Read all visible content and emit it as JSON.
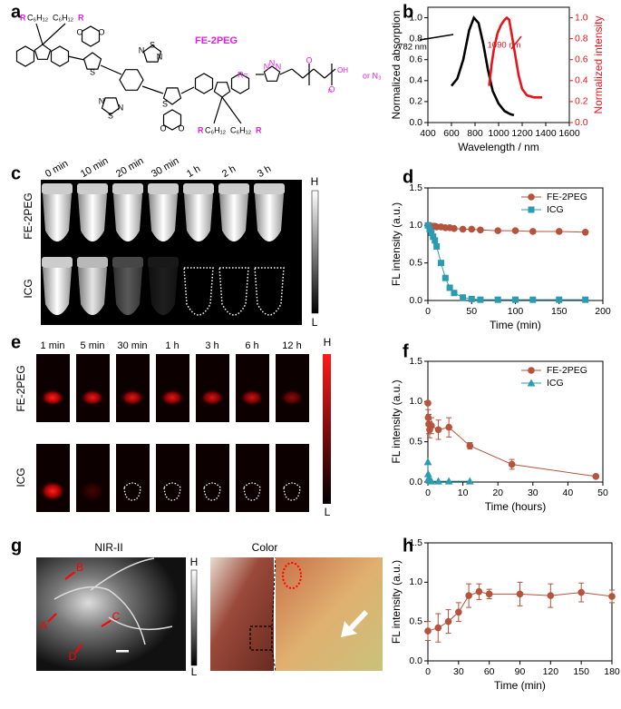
{
  "panel_labels": [
    "a",
    "b",
    "c",
    "d",
    "e",
    "f",
    "g",
    "h"
  ],
  "panel_a": {
    "title": "FE-2PEG",
    "substituent_top": [
      "R",
      "C₆H₁₂",
      "C₆H₁₂",
      "R"
    ],
    "substituent_bottom": [
      "R",
      "C₆H₁₂",
      "C₆H₁₂",
      "R"
    ],
    "atoms": [
      "O",
      "O",
      "S",
      "N",
      "S",
      "N",
      "N",
      "S",
      "N",
      "S",
      "O",
      "O"
    ],
    "r_group": {
      "label": "R=",
      "atoms": [
        "N",
        "N",
        "N",
        "O",
        "O"
      ],
      "repeat": "n",
      "end": "OH",
      "alternative": "or N₃"
    }
  },
  "panel_c": {
    "columns": [
      "0 min",
      "10 min",
      "20 min",
      "30 min",
      "1 h",
      "2 h",
      "3 h"
    ],
    "rows": [
      "FE-2PEG",
      "ICG"
    ],
    "scale": [
      "H",
      "L"
    ]
  },
  "panel_e": {
    "columns": [
      "1 min",
      "5 min",
      "30 min",
      "1 h",
      "3 h",
      "6 h",
      "12 h"
    ],
    "rows": [
      "FE-2PEG",
      "ICG"
    ],
    "scale": [
      "H",
      "L"
    ]
  },
  "panel_g": {
    "titles": [
      "NIR-II",
      "Color"
    ],
    "markers": [
      "A",
      "B",
      "C",
      "D"
    ],
    "scale": [
      "H",
      "L"
    ]
  },
  "chart_data": [
    {
      "type": "line",
      "xlabel": "Wavelength / nm",
      "ylabel": "Normalized absorption",
      "y2label": "Normalized intensity",
      "xlim": [
        400,
        1600
      ],
      "xticks": [
        400,
        600,
        800,
        1000,
        1200,
        1400,
        1600
      ],
      "ylim": [
        0,
        1.1
      ],
      "yticks": [
        {
          "value": 0,
          "label": "0.0"
        },
        {
          "value": 0.2,
          "label": "0.2"
        },
        {
          "value": 0.4,
          "label": "0.4"
        },
        {
          "value": 0.6,
          "label": "0.6"
        },
        {
          "value": 0.8,
          "label": "0.8"
        },
        {
          "value": 1,
          "label": "1.0"
        }
      ],
      "y2lim": [
        0,
        1.1
      ],
      "y2ticks": [
        {
          "value": 0,
          "label": "0.0"
        },
        {
          "value": 0.2,
          "label": "0.2"
        },
        {
          "value": 0.4,
          "label": "0.4"
        },
        {
          "value": 0.6,
          "label": "0.6"
        },
        {
          "value": 0.8,
          "label": "0.8"
        },
        {
          "value": 1,
          "label": "1.0"
        }
      ],
      "annotations": [
        "782 nm",
        "1090 nm"
      ],
      "series": [
        {
          "color": "#000000",
          "x": [
            600,
            650,
            700,
            750,
            790,
            830,
            870,
            910,
            950,
            1000,
            1050,
            1100,
            1130
          ],
          "values": [
            0.35,
            0.42,
            0.6,
            0.88,
            1.0,
            0.95,
            0.75,
            0.5,
            0.3,
            0.18,
            0.11,
            0.08,
            0.07
          ]
        },
        {
          "color": "#e8141b",
          "axis": "y2",
          "x": [
            920,
            940,
            960,
            990,
            1020,
            1050,
            1070,
            1090,
            1110,
            1140,
            1170,
            1200,
            1240,
            1300,
            1370
          ],
          "values": [
            0.35,
            0.55,
            0.7,
            0.85,
            0.93,
            0.98,
            1.0,
            0.98,
            0.85,
            0.65,
            0.45,
            0.32,
            0.26,
            0.24,
            0.24
          ]
        }
      ]
    },
    {
      "type": "line",
      "xlabel": "Time (min)",
      "ylabel": "FL intensity (a.u.)",
      "xlim": [
        0,
        200
      ],
      "xticks": [
        0,
        50,
        100,
        150,
        200
      ],
      "ylim": [
        0,
        1.5
      ],
      "yticks": [
        {
          "value": 0,
          "label": "0.0"
        },
        {
          "value": 0.5,
          "label": "0.5"
        },
        {
          "value": 1,
          "label": "1.0"
        },
        {
          "value": 1.5,
          "label": "1.5"
        }
      ],
      "legend": "upper right",
      "series": [
        {
          "name": "FE-2PEG",
          "color": "#b5533c",
          "marker": "circle",
          "x": [
            0,
            2,
            4,
            6,
            8,
            10,
            15,
            20,
            25,
            30,
            40,
            50,
            60,
            80,
            100,
            120,
            150,
            180
          ],
          "values": [
            1.0,
            1.0,
            0.99,
            0.99,
            0.99,
            0.98,
            0.98,
            0.97,
            0.97,
            0.96,
            0.95,
            0.95,
            0.94,
            0.93,
            0.93,
            0.92,
            0.92,
            0.91
          ]
        },
        {
          "name": "ICG",
          "color": "#2a9bb0",
          "marker": "square",
          "x": [
            0,
            2,
            4,
            6,
            8,
            10,
            15,
            20,
            25,
            30,
            40,
            50,
            60,
            80,
            100,
            120,
            150,
            180
          ],
          "values": [
            1.0,
            0.95,
            0.9,
            0.85,
            0.8,
            0.72,
            0.5,
            0.3,
            0.17,
            0.1,
            0.04,
            0.02,
            0.01,
            0.01,
            0.01,
            0.01,
            0.01,
            0.01
          ]
        }
      ]
    },
    {
      "type": "line",
      "xlabel": "Time (hours)",
      "ylabel": "FL intensity (a.u.)",
      "xlim": [
        0,
        50
      ],
      "xticks": [
        0,
        10,
        20,
        30,
        40,
        50
      ],
      "ylim": [
        0,
        1.5
      ],
      "yticks": [
        {
          "value": 0,
          "label": "0.0"
        },
        {
          "value": 0.5,
          "label": "0.5"
        },
        {
          "value": 1,
          "label": "1.0"
        },
        {
          "value": 1.5,
          "label": "1.5"
        }
      ],
      "legend": "upper right",
      "series": [
        {
          "name": "FE-2PEG",
          "color": "#b5533c",
          "marker": "circle",
          "x": [
            0,
            0.08,
            0.25,
            0.5,
            1,
            3,
            6,
            12,
            24,
            48
          ],
          "values": [
            0.98,
            0.8,
            0.72,
            0.65,
            0.7,
            0.65,
            0.68,
            0.45,
            0.22,
            0.07
          ],
          "errors": [
            0,
            0.1,
            0.12,
            0.1,
            0.1,
            0.12,
            0.12,
            0.04,
            0.06,
            0.01
          ]
        },
        {
          "name": "ICG",
          "color": "#2a9bb0",
          "marker": "triangle",
          "x": [
            0,
            0.08,
            0.25,
            0.5,
            1,
            3,
            6,
            12
          ],
          "values": [
            0.25,
            0.1,
            0.05,
            0.02,
            0.01,
            0.01,
            0.01,
            0.01
          ]
        }
      ]
    },
    {
      "type": "line",
      "xlabel": "Time (min)",
      "ylabel": "FL intensity (a.u.)",
      "xlim": [
        0,
        180
      ],
      "xticks": [
        0,
        30,
        60,
        90,
        120,
        150,
        180
      ],
      "ylim": [
        0,
        1.5
      ],
      "yticks": [
        {
          "value": 0,
          "label": "0.0"
        },
        {
          "value": 0.5,
          "label": "0.5"
        },
        {
          "value": 1,
          "label": "1.0"
        },
        {
          "value": 1.5,
          "label": "1.5"
        }
      ],
      "series": [
        {
          "color": "#b5533c",
          "marker": "circle",
          "x": [
            0,
            10,
            20,
            30,
            40,
            50,
            60,
            90,
            120,
            150,
            180
          ],
          "values": [
            0.38,
            0.42,
            0.5,
            0.62,
            0.83,
            0.88,
            0.85,
            0.85,
            0.83,
            0.87,
            0.82
          ],
          "errors": [
            0.12,
            0.18,
            0.15,
            0.12,
            0.15,
            0.1,
            0.06,
            0.15,
            0.15,
            0.12,
            0.08
          ]
        }
      ]
    }
  ]
}
